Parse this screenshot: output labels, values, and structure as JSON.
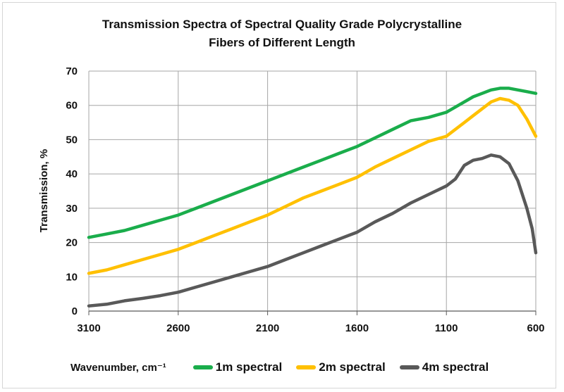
{
  "chart_data": {
    "type": "line",
    "title_line1": "Transmission  Spectra  of  Spectral  Quality  Grade Polycrystalline",
    "title_line2": "Fibers of Different Length",
    "xlabel": "Wavenumber, cm⁻¹",
    "ylabel": "Transmission, %",
    "xlim": [
      3100,
      600
    ],
    "ylim": [
      0,
      70
    ],
    "x_reversed": true,
    "xticks": [
      3100,
      2600,
      2100,
      1600,
      1100,
      600
    ],
    "yticks": [
      0,
      10,
      20,
      30,
      40,
      50,
      60,
      70
    ],
    "grid": true,
    "legend_position": "bottom",
    "series": [
      {
        "name": "1m spectral",
        "color": "#1aad4b",
        "x": [
          3100,
          3000,
          2900,
          2800,
          2700,
          2600,
          2500,
          2400,
          2300,
          2200,
          2100,
          2000,
          1900,
          1800,
          1700,
          1600,
          1500,
          1400,
          1300,
          1200,
          1100,
          1000,
          950,
          900,
          850,
          800,
          750,
          700,
          650,
          600
        ],
        "values": [
          21.5,
          22.5,
          23.5,
          25,
          26.5,
          28,
          30,
          32,
          34,
          36,
          38,
          40,
          42,
          44,
          46,
          48,
          50.5,
          53,
          55.5,
          56.5,
          58,
          61,
          62.5,
          63.5,
          64.5,
          65,
          65,
          64.5,
          64,
          63.5
        ]
      },
      {
        "name": "2m spectral",
        "color": "#ffc000",
        "x": [
          3100,
          3000,
          2900,
          2800,
          2700,
          2600,
          2500,
          2400,
          2300,
          2200,
          2100,
          2000,
          1900,
          1800,
          1700,
          1600,
          1500,
          1400,
          1300,
          1200,
          1100,
          1000,
          950,
          900,
          850,
          800,
          750,
          700,
          650,
          600
        ],
        "values": [
          11,
          12,
          13.5,
          15,
          16.5,
          18,
          20,
          22,
          24,
          26,
          28,
          30.5,
          33,
          35,
          37,
          39,
          42,
          44.5,
          47,
          49.5,
          51,
          55,
          57,
          59,
          61,
          62,
          61.5,
          60,
          56,
          51
        ]
      },
      {
        "name": "4m spectral",
        "color": "#595959",
        "x": [
          3100,
          3000,
          2900,
          2800,
          2700,
          2600,
          2500,
          2400,
          2300,
          2200,
          2100,
          2000,
          1900,
          1800,
          1700,
          1600,
          1500,
          1400,
          1300,
          1200,
          1100,
          1050,
          1000,
          950,
          900,
          850,
          800,
          750,
          700,
          650,
          620,
          600
        ],
        "values": [
          1.5,
          2,
          3,
          3.7,
          4.5,
          5.5,
          7,
          8.5,
          10,
          11.5,
          13,
          15,
          17,
          19,
          21,
          23,
          26,
          28.5,
          31.5,
          34,
          36.5,
          38.5,
          42.5,
          44,
          44.5,
          45.5,
          45,
          43,
          38,
          30,
          24,
          17
        ]
      }
    ]
  }
}
